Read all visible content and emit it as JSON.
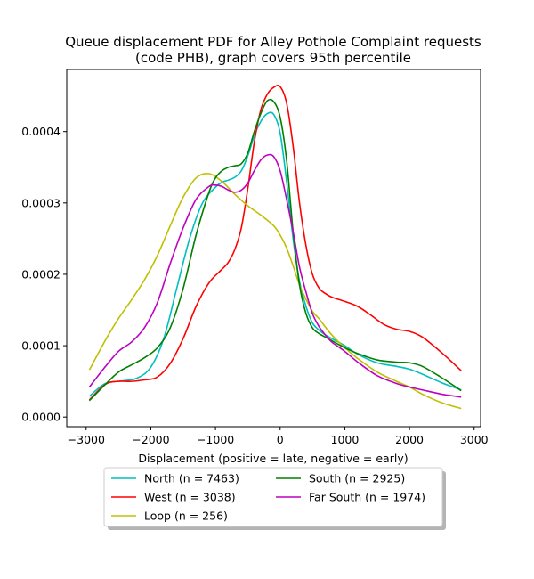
{
  "chart_data": {
    "type": "line",
    "title_line1": "Queue displacement PDF for Alley Pothole Complaint  requests",
    "title_line2": "(code PHB), graph covers 95th percentile",
    "xlabel": "Displacement (positive = late, negative = early)",
    "ylabel": "",
    "xlim": [
      -3300,
      3100
    ],
    "ylim": [
      -1.35e-05,
      0.000487
    ],
    "xticks": [
      -3000,
      -2000,
      -1000,
      0,
      1000,
      2000,
      3000
    ],
    "xtick_labels": [
      "−3000",
      "−2000",
      "−1000",
      "0",
      "1000",
      "2000",
      "3000"
    ],
    "yticks": [
      0.0,
      0.0001,
      0.0002,
      0.0003,
      0.0004
    ],
    "ytick_labels": [
      "0.0000",
      "0.0001",
      "0.0002",
      "0.0003",
      "0.0004"
    ],
    "grid": false,
    "legend_position": "below the plot, two columns",
    "series": [
      {
        "name": "North (n = 7463)",
        "color": "#00bfbf",
        "x": [
          -2950,
          -2700,
          -2400,
          -2200,
          -2000,
          -1800,
          -1600,
          -1400,
          -1200,
          -1000,
          -900,
          -800,
          -700,
          -600,
          -500,
          -400,
          -300,
          -200,
          -100,
          0,
          100,
          200,
          300,
          400,
          500,
          600,
          700,
          800,
          1000,
          1200,
          1500,
          1800,
          2000,
          2200,
          2500,
          2800
        ],
        "y": [
          2.9e-05,
          4.7e-05,
          5.1e-05,
          5.5e-05,
          7e-05,
          0.00011,
          0.00018,
          0.00025,
          0.0003,
          0.000322,
          0.000329,
          0.000332,
          0.000336,
          0.000345,
          0.000366,
          0.000394,
          0.000414,
          0.000425,
          0.000424,
          0.000398,
          0.00033,
          0.00025,
          0.00019,
          0.000155,
          0.000132,
          0.000122,
          0.000115,
          0.00011,
          0.0001,
          8.8e-05,
          7.6e-05,
          7.1e-05,
          6.7e-05,
          6e-05,
          4.8e-05,
          3.8e-05
        ]
      },
      {
        "name": "West (n = 3038)",
        "color": "#ff0000",
        "x": [
          -2950,
          -2700,
          -2500,
          -2300,
          -2100,
          -1900,
          -1700,
          -1500,
          -1300,
          -1100,
          -900,
          -800,
          -700,
          -600,
          -500,
          -400,
          -300,
          -200,
          -100,
          0,
          100,
          200,
          300,
          400,
          500,
          600,
          700,
          800,
          1000,
          1200,
          1400,
          1600,
          1800,
          2000,
          2200,
          2500,
          2800
        ],
        "y": [
          2.4e-05,
          4.6e-05,
          5e-05,
          5e-05,
          5.2e-05,
          5.6e-05,
          7.5e-05,
          0.00011,
          0.000155,
          0.000188,
          0.000207,
          0.000217,
          0.000235,
          0.000265,
          0.00032,
          0.000385,
          0.00043,
          0.000452,
          0.000462,
          0.000463,
          0.00044,
          0.00038,
          0.0003,
          0.00024,
          0.0002,
          0.000181,
          0.000173,
          0.000168,
          0.000162,
          0.000155,
          0.000143,
          0.00013,
          0.000123,
          0.00012,
          0.000112,
          9e-05,
          6.5e-05
        ]
      },
      {
        "name": "Loop (n = 256)",
        "color": "#bfbf00",
        "x": [
          -2950,
          -2700,
          -2500,
          -2300,
          -2100,
          -1900,
          -1700,
          -1500,
          -1300,
          -1100,
          -900,
          -700,
          -500,
          -300,
          -100,
          0,
          100,
          200,
          300,
          400,
          500,
          600,
          700,
          800,
          1000,
          1200,
          1500,
          1800,
          2000,
          2200,
          2500,
          2800
        ],
        "y": [
          6.6e-05,
          0.000108,
          0.000138,
          0.000164,
          0.000192,
          0.000226,
          0.000268,
          0.000308,
          0.000335,
          0.000341,
          0.00033,
          0.000312,
          0.000296,
          0.000283,
          0.000268,
          0.000255,
          0.000237,
          0.000212,
          0.000185,
          0.000165,
          0.000148,
          0.000138,
          0.000126,
          0.000115,
          9.7e-05,
          8.2e-05,
          6.3e-05,
          5e-05,
          4.2e-05,
          3.2e-05,
          2e-05,
          1.2e-05
        ]
      },
      {
        "name": "South (n = 2925)",
        "color": "#008000",
        "x": [
          -2950,
          -2700,
          -2500,
          -2300,
          -2100,
          -1900,
          -1700,
          -1500,
          -1300,
          -1100,
          -1000,
          -900,
          -800,
          -700,
          -600,
          -500,
          -400,
          -300,
          -200,
          -100,
          0,
          100,
          200,
          300,
          400,
          500,
          600,
          700,
          800,
          1000,
          1200,
          1500,
          1800,
          2000,
          2200,
          2500,
          2800
        ],
        "y": [
          2.3e-05,
          4.6e-05,
          6.3e-05,
          7.3e-05,
          8.3e-05,
          9.7e-05,
          0.000125,
          0.00018,
          0.000255,
          0.000315,
          0.000335,
          0.000345,
          0.00035,
          0.000352,
          0.000355,
          0.00037,
          0.0004,
          0.000425,
          0.000443,
          0.000442,
          0.00042,
          0.00036,
          0.00026,
          0.000185,
          0.000145,
          0.000125,
          0.000117,
          0.000112,
          0.000107,
          9.7e-05,
          8.9e-05,
          8e-05,
          7.7e-05,
          7.6e-05,
          7.1e-05,
          5.5e-05,
          3.7e-05
        ]
      },
      {
        "name": "Far South (n = 1974)",
        "color": "#bf00bf",
        "x": [
          -2950,
          -2700,
          -2500,
          -2300,
          -2100,
          -1900,
          -1700,
          -1500,
          -1300,
          -1100,
          -1000,
          -900,
          -800,
          -700,
          -600,
          -500,
          -400,
          -300,
          -200,
          -100,
          0,
          100,
          200,
          300,
          400,
          500,
          600,
          700,
          800,
          1000,
          1200,
          1500,
          1800,
          2000,
          2200,
          2500,
          2800
        ],
        "y": [
          4.2e-05,
          7.1e-05,
          9.2e-05,
          0.000105,
          0.000125,
          0.00016,
          0.000215,
          0.000265,
          0.000305,
          0.000323,
          0.000325,
          0.000323,
          0.000318,
          0.000315,
          0.000318,
          0.000328,
          0.000345,
          0.00036,
          0.000367,
          0.000365,
          0.000345,
          0.000305,
          0.00026,
          0.00021,
          0.000175,
          0.000145,
          0.000127,
          0.000115,
          0.000105,
          9.2e-05,
          7.7e-05,
          5.8e-05,
          4.7e-05,
          4.2e-05,
          3.8e-05,
          3.2e-05,
          2.8e-05
        ]
      }
    ]
  }
}
